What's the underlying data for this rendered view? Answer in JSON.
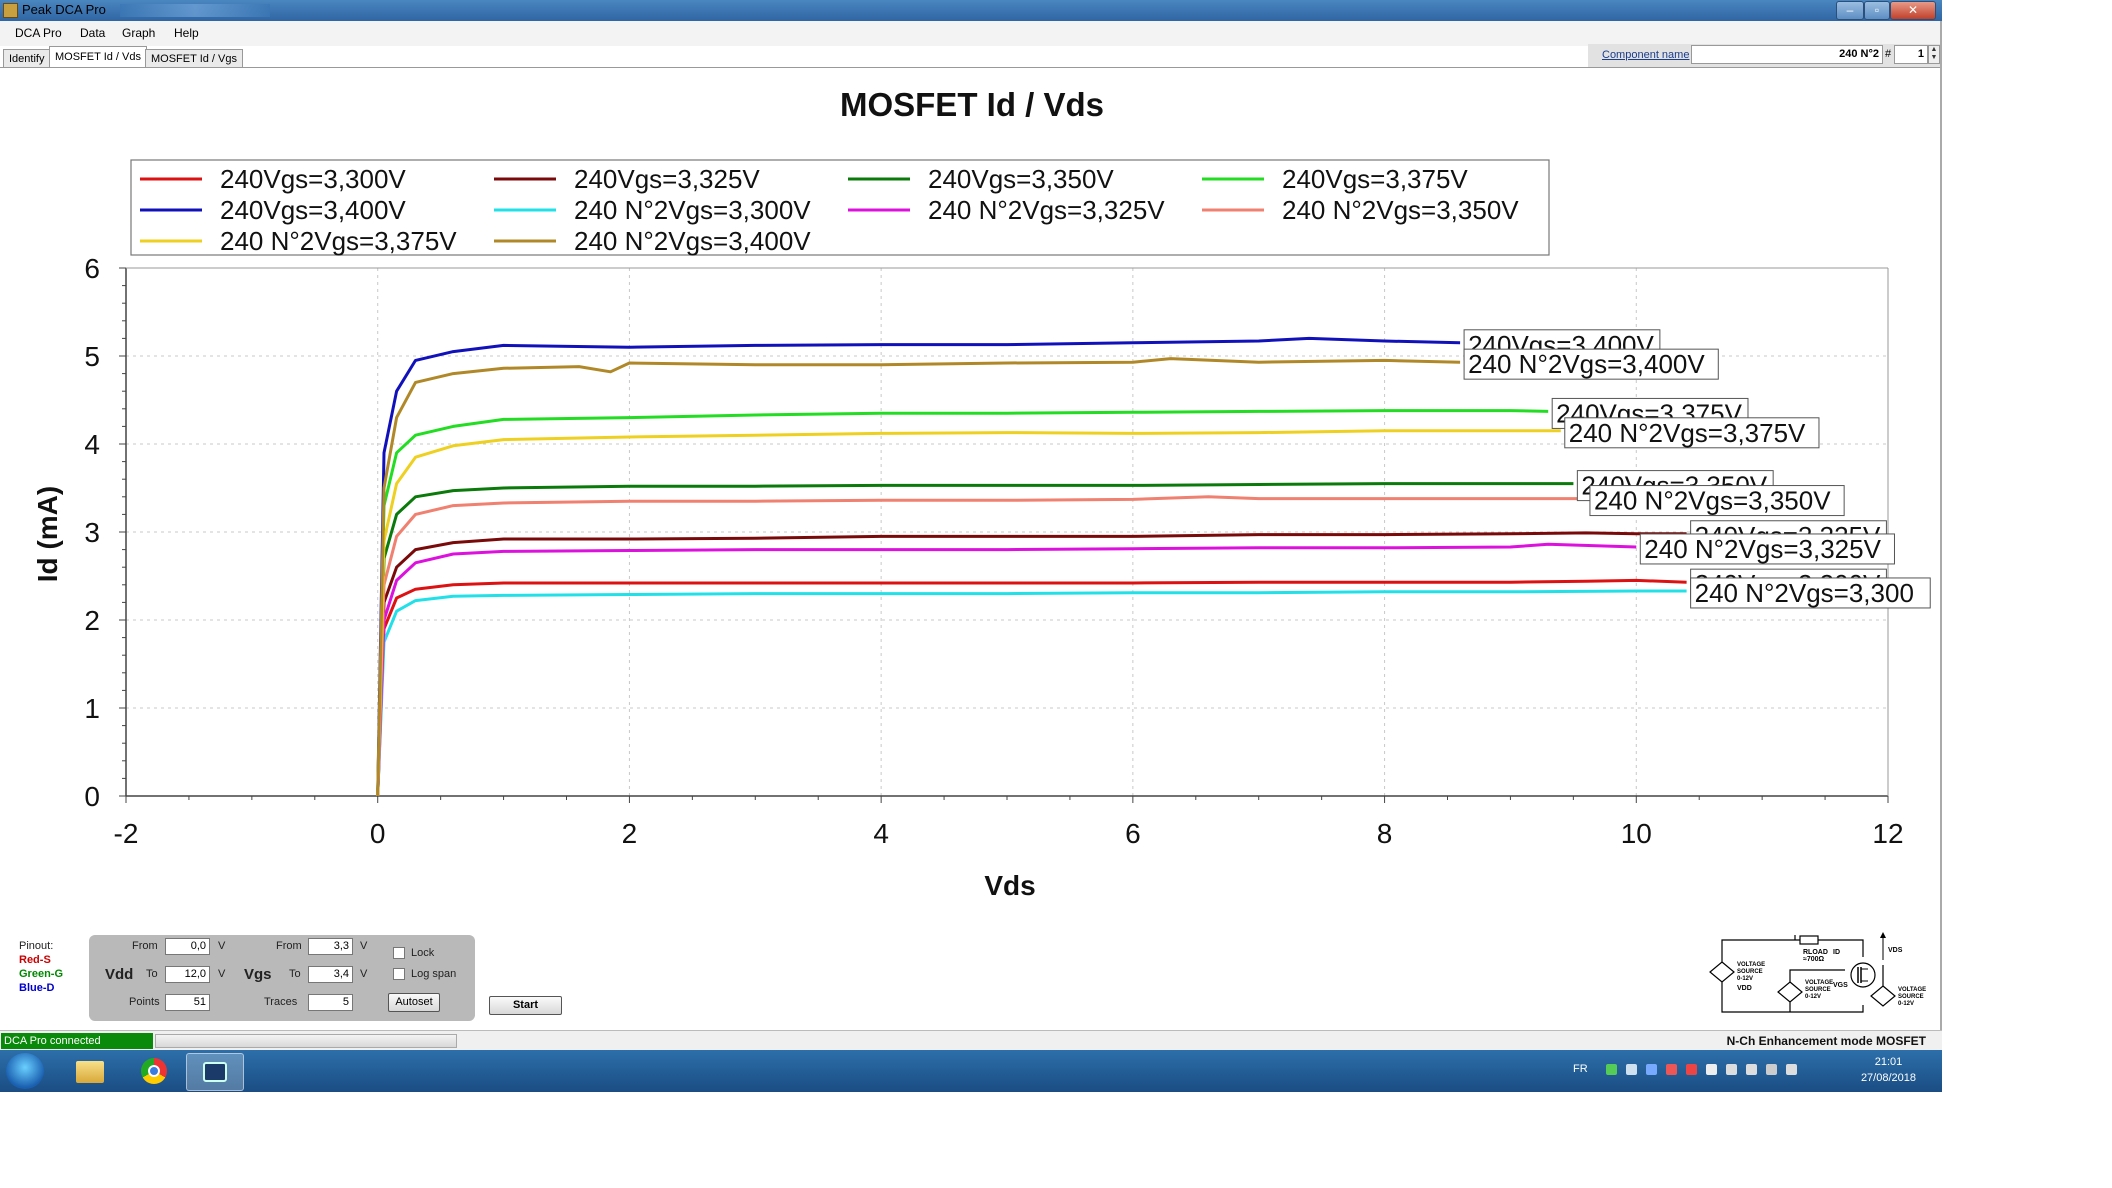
{
  "window": {
    "title": "Peak DCA Pro",
    "buttons": [
      "–",
      "▫",
      "✕"
    ]
  },
  "menu": [
    "DCA Pro",
    "Data",
    "Graph",
    "Help"
  ],
  "component": {
    "label": "Component name",
    "value": "240 N°2",
    "hash": "#",
    "number": "1"
  },
  "tabs": [
    {
      "label": "Identify",
      "active": false
    },
    {
      "label": "MOSFET Id / Vds",
      "active": true
    },
    {
      "label": "MOSFET Id / Vgs",
      "active": false
    }
  ],
  "chart_data": {
    "type": "line",
    "title": "MOSFET Id / Vds",
    "xlabel": "Vds",
    "ylabel": "Id (mA)",
    "xlim": [
      -2,
      12
    ],
    "ylim": [
      0,
      6
    ],
    "xticks": [
      "-2",
      "0",
      "2",
      "4",
      "6",
      "8",
      "10",
      "12"
    ],
    "yticks": [
      "0",
      "1",
      "2",
      "3",
      "4",
      "5",
      "6"
    ],
    "grid": true,
    "legend_position": "top",
    "series": [
      {
        "name": "240Vgs=3,300V",
        "color": "#dd1111",
        "points": [
          [
            0,
            0
          ],
          [
            0.05,
            1.9
          ],
          [
            0.15,
            2.25
          ],
          [
            0.3,
            2.35
          ],
          [
            0.6,
            2.4
          ],
          [
            1,
            2.42
          ],
          [
            2,
            2.42
          ],
          [
            3,
            2.42
          ],
          [
            4,
            2.42
          ],
          [
            5,
            2.42
          ],
          [
            6,
            2.42
          ],
          [
            7,
            2.43
          ],
          [
            8,
            2.43
          ],
          [
            9,
            2.43
          ],
          [
            9.6,
            2.44
          ],
          [
            10,
            2.45
          ],
          [
            10.4,
            2.43
          ]
        ]
      },
      {
        "name": "240Vgs=3,325V",
        "color": "#7a0a0a",
        "points": [
          [
            0,
            0
          ],
          [
            0.05,
            2.2
          ],
          [
            0.15,
            2.6
          ],
          [
            0.3,
            2.8
          ],
          [
            0.6,
            2.88
          ],
          [
            1,
            2.92
          ],
          [
            2,
            2.92
          ],
          [
            3,
            2.93
          ],
          [
            4,
            2.95
          ],
          [
            5,
            2.95
          ],
          [
            6,
            2.95
          ],
          [
            7,
            2.97
          ],
          [
            8,
            2.97
          ],
          [
            9,
            2.98
          ],
          [
            9.6,
            2.99
          ],
          [
            10,
            2.98
          ],
          [
            10.4,
            2.98
          ]
        ]
      },
      {
        "name": "240Vgs=3,350V",
        "color": "#0a7a0a",
        "points": [
          [
            0,
            0
          ],
          [
            0.05,
            2.7
          ],
          [
            0.15,
            3.2
          ],
          [
            0.3,
            3.4
          ],
          [
            0.6,
            3.47
          ],
          [
            1,
            3.5
          ],
          [
            2,
            3.52
          ],
          [
            3,
            3.52
          ],
          [
            4,
            3.53
          ],
          [
            5,
            3.53
          ],
          [
            6,
            3.53
          ],
          [
            7,
            3.54
          ],
          [
            8,
            3.55
          ],
          [
            9,
            3.55
          ],
          [
            9.5,
            3.55
          ]
        ]
      },
      {
        "name": "240Vgs=3,375V",
        "color": "#22dd22",
        "points": [
          [
            0,
            0
          ],
          [
            0.05,
            3.3
          ],
          [
            0.15,
            3.9
          ],
          [
            0.3,
            4.1
          ],
          [
            0.6,
            4.2
          ],
          [
            1,
            4.28
          ],
          [
            2,
            4.3
          ],
          [
            3,
            4.33
          ],
          [
            4,
            4.35
          ],
          [
            5,
            4.35
          ],
          [
            6,
            4.36
          ],
          [
            7,
            4.37
          ],
          [
            8,
            4.38
          ],
          [
            9,
            4.38
          ],
          [
            9.3,
            4.37
          ]
        ]
      },
      {
        "name": "240Vgs=3,400V",
        "color": "#1111bb",
        "points": [
          [
            0,
            0
          ],
          [
            0.05,
            3.9
          ],
          [
            0.15,
            4.6
          ],
          [
            0.3,
            4.95
          ],
          [
            0.6,
            5.05
          ],
          [
            1,
            5.12
          ],
          [
            2,
            5.1
          ],
          [
            3,
            5.12
          ],
          [
            4,
            5.13
          ],
          [
            5,
            5.13
          ],
          [
            6,
            5.15
          ],
          [
            7,
            5.17
          ],
          [
            7.4,
            5.2
          ],
          [
            8,
            5.17
          ],
          [
            8.6,
            5.15
          ]
        ]
      },
      {
        "name": "240 N°2Vgs=3,300V",
        "color": "#22e0e8",
        "points": [
          [
            0,
            0
          ],
          [
            0.05,
            1.75
          ],
          [
            0.15,
            2.1
          ],
          [
            0.3,
            2.22
          ],
          [
            0.6,
            2.27
          ],
          [
            1,
            2.28
          ],
          [
            2,
            2.29
          ],
          [
            3,
            2.3
          ],
          [
            4,
            2.3
          ],
          [
            5,
            2.3
          ],
          [
            6,
            2.31
          ],
          [
            7,
            2.31
          ],
          [
            8,
            2.32
          ],
          [
            9,
            2.32
          ],
          [
            10,
            2.33
          ],
          [
            10.4,
            2.33
          ]
        ]
      },
      {
        "name": "240 N°2Vgs=3,325V",
        "color": "#dd11dd",
        "points": [
          [
            0,
            0
          ],
          [
            0.05,
            2.0
          ],
          [
            0.15,
            2.45
          ],
          [
            0.3,
            2.65
          ],
          [
            0.6,
            2.75
          ],
          [
            1,
            2.78
          ],
          [
            2,
            2.79
          ],
          [
            3,
            2.8
          ],
          [
            4,
            2.8
          ],
          [
            5,
            2.8
          ],
          [
            6,
            2.81
          ],
          [
            7,
            2.82
          ],
          [
            8,
            2.82
          ],
          [
            9,
            2.83
          ],
          [
            9.3,
            2.86
          ],
          [
            10,
            2.83
          ]
        ]
      },
      {
        "name": "240 N°2Vgs=3,350V",
        "color": "#f08070",
        "points": [
          [
            0,
            0
          ],
          [
            0.05,
            2.4
          ],
          [
            0.15,
            2.95
          ],
          [
            0.3,
            3.2
          ],
          [
            0.6,
            3.3
          ],
          [
            1,
            3.33
          ],
          [
            2,
            3.35
          ],
          [
            3,
            3.35
          ],
          [
            4,
            3.36
          ],
          [
            5,
            3.36
          ],
          [
            6,
            3.37
          ],
          [
            6.6,
            3.4
          ],
          [
            7,
            3.38
          ],
          [
            8,
            3.38
          ],
          [
            9,
            3.38
          ],
          [
            9.6,
            3.38
          ]
        ]
      },
      {
        "name": "240 N°2Vgs=3,375V",
        "color": "#eed020",
        "points": [
          [
            0,
            0
          ],
          [
            0.05,
            2.9
          ],
          [
            0.15,
            3.55
          ],
          [
            0.3,
            3.85
          ],
          [
            0.6,
            3.98
          ],
          [
            1,
            4.05
          ],
          [
            2,
            4.08
          ],
          [
            3,
            4.1
          ],
          [
            4,
            4.12
          ],
          [
            5,
            4.13
          ],
          [
            6,
            4.12
          ],
          [
            7,
            4.13
          ],
          [
            8,
            4.15
          ],
          [
            9,
            4.15
          ],
          [
            9.4,
            4.15
          ]
        ]
      },
      {
        "name": "240 N°2Vgs=3,400V",
        "color": "#b08828",
        "points": [
          [
            0,
            0
          ],
          [
            0.05,
            3.5
          ],
          [
            0.15,
            4.3
          ],
          [
            0.3,
            4.7
          ],
          [
            0.6,
            4.8
          ],
          [
            1,
            4.86
          ],
          [
            1.6,
            4.88
          ],
          [
            1.85,
            4.82
          ],
          [
            2,
            4.92
          ],
          [
            3,
            4.9
          ],
          [
            4,
            4.9
          ],
          [
            5,
            4.92
          ],
          [
            6,
            4.93
          ],
          [
            6.3,
            4.97
          ],
          [
            7,
            4.93
          ],
          [
            8,
            4.95
          ],
          [
            8.6,
            4.93
          ]
        ]
      }
    ],
    "end_labels": [
      {
        "text": "240Vgs=3,400V",
        "series": 4
      },
      {
        "text": "240 N°2Vgs=3,400V",
        "series": 9
      },
      {
        "text": "240Vgs=3,375V",
        "series": 3
      },
      {
        "text": "240 N°2Vgs=3,375V",
        "series": 8
      },
      {
        "text": "240Vgs=3,350V",
        "series": 2
      },
      {
        "text": "240 N°2Vgs=3,350V",
        "series": 7
      },
      {
        "text": "240Vgs=3,325V",
        "series": 1
      },
      {
        "text": "240 N°2Vgs=3,325V",
        "series": 6
      },
      {
        "text": "240Vgs=3,300V",
        "series": 0
      },
      {
        "text": "240 N°2Vgs=3,300",
        "series": 5
      }
    ]
  },
  "controls": {
    "pinout_title": "Pinout:",
    "pinout": [
      {
        "label": "Red-S",
        "color": "#cc0000"
      },
      {
        "label": "Green-G",
        "color": "#008800"
      },
      {
        "label": "Blue-D",
        "color": "#0000cc"
      }
    ],
    "vdd": {
      "label": "Vdd",
      "from_label": "From",
      "from": "0,0",
      "to_label": "To",
      "to": "12,0",
      "unit": "V",
      "points_label": "Points",
      "points": "51"
    },
    "vgs": {
      "label": "Vgs",
      "from_label": "From",
      "from": "3,3",
      "to_label": "To",
      "to": "3,4",
      "unit": "V",
      "traces_label": "Traces",
      "traces": "5"
    },
    "lock_label": "Lock",
    "logspan_label": "Log span",
    "autoset_label": "Autoset",
    "start_label": "Start"
  },
  "schematic": {
    "rload": "RLOAD",
    "rload_value": "≈700Ω",
    "id": "ID",
    "vds": "VDS",
    "vgs": "VGS",
    "vdd": "VDD",
    "source1": [
      "VOLTAGE",
      "SOURCE",
      "0-12V"
    ],
    "source2": [
      "VOLTAGE",
      "SOURCE",
      "0-12V"
    ],
    "source3": [
      "VOLTAGE",
      "SOURCE",
      "0-12V"
    ]
  },
  "status": {
    "connected": "DCA Pro connected",
    "device": "N-Ch Enhancement mode MOSFET"
  },
  "taskbar": {
    "lang": "FR",
    "time": "21:01",
    "date": "27/08/2018"
  }
}
